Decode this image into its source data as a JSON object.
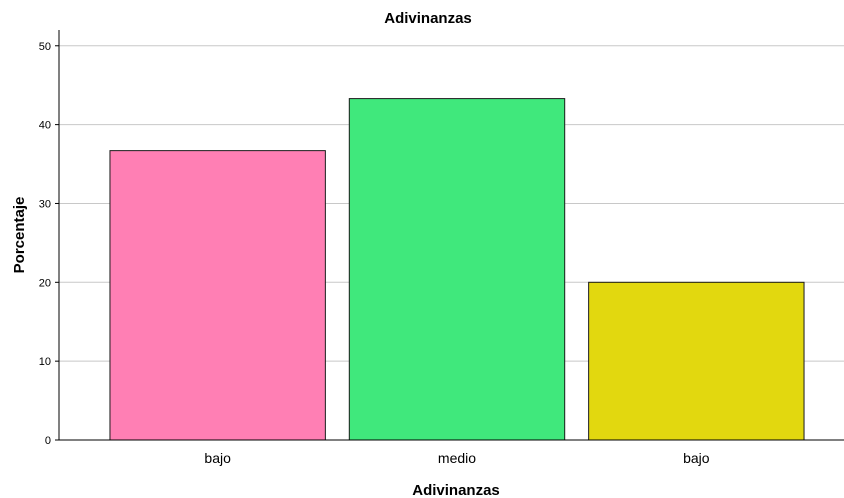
{
  "chart_data": {
    "type": "bar",
    "title": "Adivinanzas",
    "xlabel": "Adivinanzas",
    "ylabel": "Porcentaje",
    "categories": [
      "bajo",
      "medio",
      "bajo"
    ],
    "values": [
      36.7,
      43.3,
      20.0
    ],
    "colors": [
      "#ff7fb4",
      "#40e87c",
      "#e2d80f"
    ],
    "ylim": [
      0,
      52
    ],
    "yticks": [
      0,
      10,
      20,
      30,
      40,
      50
    ],
    "grid": true
  }
}
